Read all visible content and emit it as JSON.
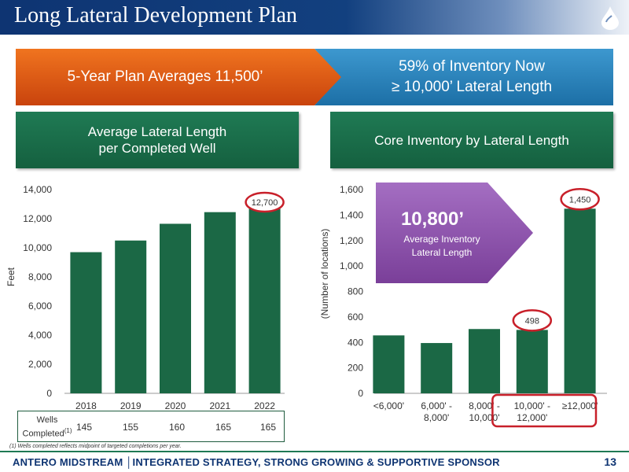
{
  "header": {
    "title": "Long Lateral Development Plan"
  },
  "banners": {
    "orange": "5-Year Plan Averages 11,500’",
    "blue_line1": "59% of Inventory Now",
    "blue_line2": "≥ 10,000’ Lateral Length"
  },
  "boxes": {
    "left_line1": "Average Lateral Length",
    "left_line2": "per Completed Well",
    "right": "Core Inventory by Lateral Length"
  },
  "chart_data": [
    {
      "type": "bar",
      "categories": [
        "2018",
        "2019",
        "2020",
        "2021",
        "2022"
      ],
      "values": [
        9700,
        10500,
        11650,
        12450,
        12700
      ],
      "ylabel": "Feet",
      "ylim": [
        0,
        14000
      ],
      "yticks": [
        "0",
        "2,000",
        "4,000",
        "6,000",
        "8,000",
        "10,000",
        "12,000",
        "14,000"
      ],
      "annotations": [
        {
          "category": "2022",
          "label": "12,700"
        }
      ],
      "color": "#1b6845",
      "circle_color": "#c8202a"
    },
    {
      "type": "bar",
      "categories": [
        [
          "<6,000'"
        ],
        [
          "6,000' -",
          "8,000'"
        ],
        [
          "8,000' -",
          "10,000'"
        ],
        [
          "10,000' -",
          "12,000'"
        ],
        [
          "≥12,000'"
        ]
      ],
      "values": [
        455,
        395,
        505,
        498,
        1450
      ],
      "ylabel": "(Number of locations)",
      "ylim": [
        0,
        1600
      ],
      "yticks": [
        "0",
        "200",
        "400",
        "600",
        "800",
        "1,000",
        "1,200",
        "1,400",
        "1,600"
      ],
      "annotations": [
        {
          "index": 3,
          "label": "498"
        },
        {
          "index": 4,
          "label": "1,450"
        }
      ],
      "callout": {
        "value": "10,800’",
        "line1": "Average Inventory",
        "line2": "Lateral Length"
      },
      "color": "#1b6845",
      "circle_color": "#c8202a"
    }
  ],
  "wells": {
    "label1": "Wells",
    "label2": "Completed",
    "sup": "(1)",
    "values": [
      "145",
      "155",
      "160",
      "165",
      "165"
    ]
  },
  "footnote": "(1)  Wells completed reflects midpoint of targeted completions per year.",
  "footer": {
    "text": "ANTERO MIDSTREAM │INTEGRATED STRATEGY, STRONG GROWING & SUPPORTIVE SPONSOR",
    "page": "13"
  }
}
